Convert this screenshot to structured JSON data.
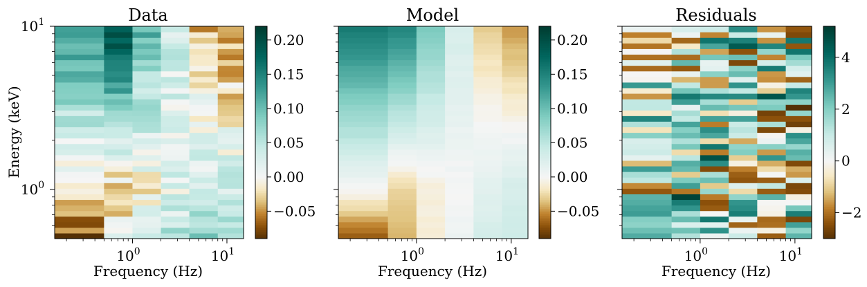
{
  "figure": {
    "ylabel": "Energy (keV)"
  },
  "chart_data": [
    {
      "type": "heatmap",
      "title": "Data",
      "xlabel": "Frequency (Hz)",
      "ylabel": "Energy (keV)",
      "x_scale": "log",
      "y_scale": "log",
      "x_edges": [
        0.15,
        0.5,
        1.0,
        2.0,
        4.0,
        8.0,
        15.0
      ],
      "x_tick_labels": [
        "10^0",
        "10^1"
      ],
      "y_tick_labels": [
        "10^0",
        "10^1"
      ],
      "ylim": [
        0.5,
        10
      ],
      "colormap": "BrBG",
      "colorbar": {
        "vmin": -0.09,
        "vmax": 0.22,
        "ticks": [
          -0.05,
          0.0,
          0.05,
          0.1,
          0.15,
          0.2
        ],
        "tick_labels": [
          "−0.05",
          "0.00",
          "0.05",
          "0.10",
          "0.15",
          "0.20"
        ]
      },
      "z_profile": {
        "columns": [
          {
            "x_range": [
              0.15,
              0.5
            ],
            "value_at_1keV": -0.02,
            "value_at_10keV": 0.14,
            "value_at_0.5keV": -0.08
          },
          {
            "x_range": [
              0.5,
              1.0
            ],
            "value_at_1keV": -0.03,
            "value_at_10keV": 0.2,
            "value_at_0.5keV": 0.0
          },
          {
            "x_range": [
              1.0,
              2.0
            ],
            "value_at_1keV": -0.01,
            "value_at_10keV": 0.11,
            "value_at_0.5keV": 0.04
          },
          {
            "x_range": [
              2.0,
              4.0
            ],
            "value_at_1keV": 0.02,
            "value_at_10keV": 0.03,
            "value_at_0.5keV": 0.06
          },
          {
            "x_range": [
              4.0,
              8.0
            ],
            "value_at_1keV": 0.03,
            "value_at_10keV": -0.03,
            "value_at_0.5keV": 0.08
          },
          {
            "x_range": [
              8.0,
              15.0
            ],
            "value_at_1keV": 0.04,
            "value_at_10keV": -0.06,
            "value_at_0.5keV": 0.07
          }
        ]
      }
    },
    {
      "type": "heatmap",
      "title": "Model",
      "xlabel": "Frequency (Hz)",
      "x_scale": "log",
      "y_scale": "log",
      "x_edges": [
        0.15,
        0.5,
        1.0,
        2.0,
        4.0,
        8.0,
        15.0
      ],
      "x_tick_labels": [
        "10^0",
        "10^1"
      ],
      "ylim": [
        0.5,
        10
      ],
      "colormap": "BrBG",
      "colorbar": {
        "vmin": -0.09,
        "vmax": 0.22,
        "ticks": [
          -0.05,
          0.0,
          0.05,
          0.1,
          0.15,
          0.2
        ],
        "tick_labels": [
          "−0.05",
          "0.00",
          "0.05",
          "0.10",
          "0.15",
          "0.20"
        ]
      },
      "z_profile": {
        "columns": [
          {
            "x_range": [
              0.15,
              0.5
            ],
            "value_at_1keV": 0.0,
            "value_at_10keV": 0.16,
            "value_at_0.5keV": -0.07
          },
          {
            "x_range": [
              0.5,
              1.0
            ],
            "value_at_1keV": -0.03,
            "value_at_10keV": 0.15,
            "value_at_0.5keV": -0.04
          },
          {
            "x_range": [
              1.0,
              2.0
            ],
            "value_at_1keV": -0.01,
            "value_at_10keV": 0.09,
            "value_at_0.5keV": -0.01
          },
          {
            "x_range": [
              2.0,
              4.0
            ],
            "value_at_1keV": 0.0,
            "value_at_10keV": 0.03,
            "value_at_0.5keV": 0.01
          },
          {
            "x_range": [
              4.0,
              8.0
            ],
            "value_at_1keV": 0.02,
            "value_at_10keV": -0.03,
            "value_at_0.5keV": 0.03
          },
          {
            "x_range": [
              8.0,
              15.0
            ],
            "value_at_1keV": 0.03,
            "value_at_10keV": -0.05,
            "value_at_0.5keV": 0.04
          }
        ]
      }
    },
    {
      "type": "heatmap",
      "title": "Residuals",
      "xlabel": "Frequency (Hz)",
      "x_scale": "log",
      "y_scale": "log",
      "x_edges": [
        0.15,
        0.5,
        1.0,
        2.0,
        4.0,
        8.0,
        15.0
      ],
      "x_tick_labels": [
        "10^0",
        "10^1"
      ],
      "ylim": [
        0.5,
        10
      ],
      "colormap": "BrBG",
      "colorbar": {
        "vmin": -3,
        "vmax": 5.2,
        "ticks": [
          -2,
          0,
          2,
          4
        ],
        "tick_labels": [
          "−2",
          "0",
          "2",
          "4"
        ]
      },
      "z_profile": {
        "description_free_noise_range": [
          -3,
          5
        ]
      }
    }
  ]
}
